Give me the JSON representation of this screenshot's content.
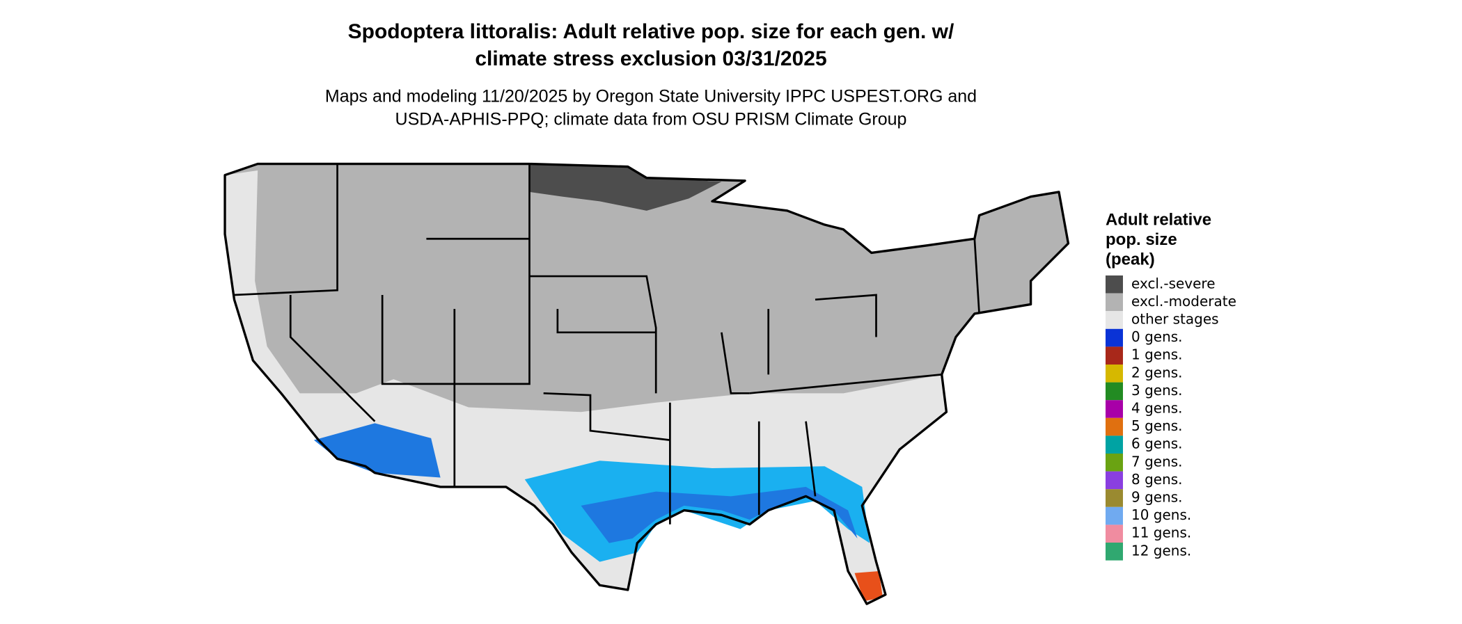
{
  "title": [
    "Spodoptera littoralis: Adult relative pop. size for each gen. w/",
    "climate stress exclusion 03/31/2025"
  ],
  "subtitle": [
    "Maps and modeling 11/20/2025 by Oregon State University IPPC USPEST.ORG and",
    "USDA-APHIS-PPQ; climate data from OSU PRISM Climate Group"
  ],
  "legend": {
    "title": [
      "Adult relative",
      "pop. size",
      "(peak)"
    ],
    "items": [
      {
        "label": "excl.-severe",
        "color": "#4d4d4d"
      },
      {
        "label": "excl.-moderate",
        "color": "#b3b3b3"
      },
      {
        "label": "other stages",
        "color": "#e6e6e6"
      },
      {
        "label": "0 gens.",
        "color": "#0a33d6"
      },
      {
        "label": "1 gens.",
        "color": "#a8281a"
      },
      {
        "label": "2 gens.",
        "color": "#d6b800"
      },
      {
        "label": "3 gens.",
        "color": "#228b22"
      },
      {
        "label": "4 gens.",
        "color": "#a800a8"
      },
      {
        "label": "5 gens.",
        "color": "#e07010"
      },
      {
        "label": "6 gens.",
        "color": "#00a3a3"
      },
      {
        "label": "7 gens.",
        "color": "#6aa312"
      },
      {
        "label": "8 gens.",
        "color": "#8a3fe0"
      },
      {
        "label": "9 gens.",
        "color": "#9a8a30"
      },
      {
        "label": "10 gens.",
        "color": "#70aaf0"
      },
      {
        "label": "11 gens.",
        "color": "#f08ca0"
      },
      {
        "label": "12 gens.",
        "color": "#30a870"
      }
    ]
  }
}
